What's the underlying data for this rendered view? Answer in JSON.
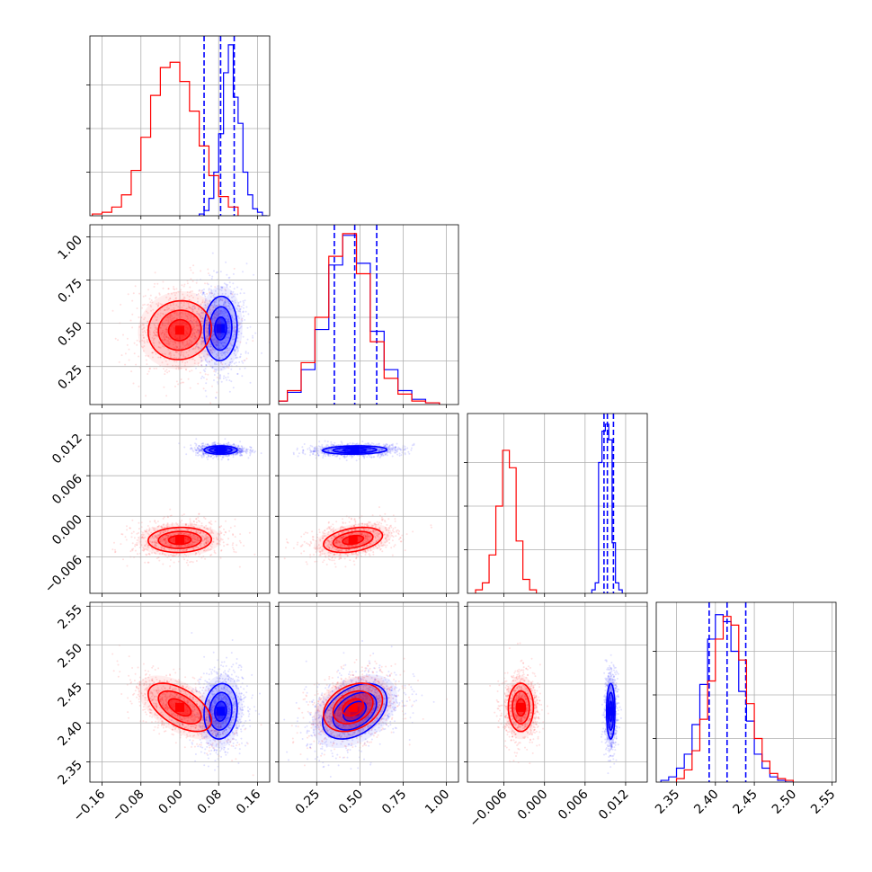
{
  "chart_data": {
    "type": "corner",
    "n_params": 4,
    "grid": true,
    "colors": {
      "blue": "#0000ff",
      "red": "#ff0000"
    },
    "axis_ticks": [
      {
        "ticks": [
          -0.16,
          -0.08,
          0.0,
          0.08,
          0.16
        ],
        "labels": [
          "−0.16",
          "−0.08",
          "0.00",
          "0.08",
          "0.16"
        ],
        "lim": [
          -0.185,
          0.185
        ]
      },
      {
        "ticks": [
          0.25,
          0.5,
          0.75,
          1.0
        ],
        "labels": [
          "0.25",
          "0.50",
          "0.75",
          "1.00"
        ],
        "lim": [
          0.03,
          1.07
        ]
      },
      {
        "ticks": [
          -0.006,
          0.0,
          0.006,
          0.012
        ],
        "labels": [
          "−0.006",
          "0.000",
          "0.006",
          "0.012"
        ],
        "lim": [
          -0.0114,
          0.0152
        ]
      },
      {
        "ticks": [
          2.35,
          2.4,
          2.45,
          2.5,
          2.55
        ],
        "labels": [
          "2.35",
          "2.40",
          "2.45",
          "2.50",
          "2.55"
        ],
        "lim": [
          2.324,
          2.555
        ]
      }
    ],
    "series": [
      {
        "color": "blue",
        "means": [
          0.084,
          0.47,
          0.0098,
          2.415
        ],
        "sigmas": [
          0.022,
          0.12,
          0.0004,
          0.023
        ],
        "corr": [
          [
            1,
            0.05,
            0,
            0.1
          ],
          [
            0.05,
            1,
            0.1,
            0.4
          ],
          [
            0,
            0.1,
            1,
            0
          ],
          [
            0.1,
            0.4,
            0,
            1
          ]
        ],
        "quantiles": [
          [
            0.05,
            0.084,
            0.112
          ],
          [
            0.352,
            0.47,
            0.597
          ],
          [
            0.0088,
            0.0093,
            0.0102
          ],
          [
            2.392,
            2.415,
            2.439
          ]
        ],
        "histograms": [
          {
            "edges": [
              0.04,
              0.05,
              0.06,
              0.07,
              0.08,
              0.09,
              0.1,
              0.11,
              0.12,
              0.13,
              0.14,
              0.15,
              0.16,
              0.17,
              0.18
            ],
            "counts": [
              0.01,
              0.03,
              0.1,
              0.25,
              0.47,
              0.82,
              0.98,
              0.68,
              0.53,
              0.25,
              0.12,
              0.04,
              0.02,
              0.0
            ]
          },
          {
            "edges": [
              0.0,
              0.08,
              0.16,
              0.24,
              0.32,
              0.4,
              0.48,
              0.56,
              0.64,
              0.72,
              0.8,
              0.88,
              0.96
            ],
            "counts": [
              0.02,
              0.07,
              0.2,
              0.43,
              0.8,
              0.97,
              0.81,
              0.42,
              0.2,
              0.08,
              0.03,
              0.01
            ]
          },
          {
            "edges": [
              0.007,
              0.0075,
              0.008,
              0.0085,
              0.009,
              0.0095,
              0.01,
              0.0105,
              0.011,
              0.0115
            ],
            "counts": [
              0.02,
              0.06,
              0.75,
              0.93,
              0.97,
              0.88,
              0.29,
              0.06,
              0.02
            ]
          },
          {
            "edges": [
              2.33,
              2.34,
              2.35,
              2.36,
              2.37,
              2.38,
              2.39,
              2.4,
              2.41,
              2.42,
              2.43,
              2.44,
              2.45,
              2.46,
              2.47,
              2.48,
              2.49,
              2.5
            ],
            "counts": [
              0.01,
              0.03,
              0.08,
              0.16,
              0.33,
              0.56,
              0.82,
              0.96,
              0.92,
              0.75,
              0.52,
              0.35,
              0.16,
              0.08,
              0.03,
              0.01,
              0.0
            ]
          }
        ]
      },
      {
        "color": "red",
        "means": [
          0.0,
          0.46,
          -0.0035,
          2.42
        ],
        "sigmas": [
          0.042,
          0.11,
          0.0012,
          0.02
        ],
        "corr": [
          [
            1,
            0.05,
            0.05,
            -0.55
          ],
          [
            0.05,
            1,
            0.35,
            0.3
          ],
          [
            0.05,
            0.35,
            1,
            0
          ],
          [
            -0.55,
            0.3,
            0,
            1
          ]
        ],
        "quantiles": [],
        "histograms": [
          {
            "edges": [
              -0.18,
              -0.16,
              -0.14,
              -0.12,
              -0.1,
              -0.08,
              -0.06,
              -0.04,
              -0.02,
              0.0,
              0.02,
              0.04,
              0.06,
              0.08,
              0.1,
              0.12
            ],
            "counts": [
              0.01,
              0.02,
              0.05,
              0.12,
              0.26,
              0.45,
              0.69,
              0.85,
              0.88,
              0.77,
              0.6,
              0.4,
              0.23,
              0.11,
              0.05
            ]
          },
          {
            "edges": [
              0.0,
              0.08,
              0.16,
              0.24,
              0.32,
              0.4,
              0.48,
              0.56,
              0.64,
              0.72,
              0.8,
              0.88,
              0.96
            ],
            "counts": [
              0.02,
              0.08,
              0.24,
              0.5,
              0.85,
              0.98,
              0.75,
              0.36,
              0.15,
              0.06,
              0.02,
              0.01
            ]
          },
          {
            "edges": [
              -0.0102,
              -0.0092,
              -0.0082,
              -0.0072,
              -0.0062,
              -0.0052,
              -0.0042,
              -0.0032,
              -0.0022,
              -0.0012
            ],
            "counts": [
              0.02,
              0.06,
              0.22,
              0.5,
              0.82,
              0.72,
              0.3,
              0.08,
              0.02
            ]
          },
          {
            "edges": [
              2.35,
              2.36,
              2.37,
              2.38,
              2.39,
              2.4,
              2.41,
              2.42,
              2.43,
              2.44,
              2.45,
              2.46,
              2.47,
              2.48,
              2.49,
              2.5
            ],
            "counts": [
              0.02,
              0.07,
              0.18,
              0.36,
              0.58,
              0.82,
              0.95,
              0.9,
              0.7,
              0.45,
              0.25,
              0.12,
              0.05,
              0.02,
              0.01
            ]
          }
        ]
      }
    ]
  }
}
